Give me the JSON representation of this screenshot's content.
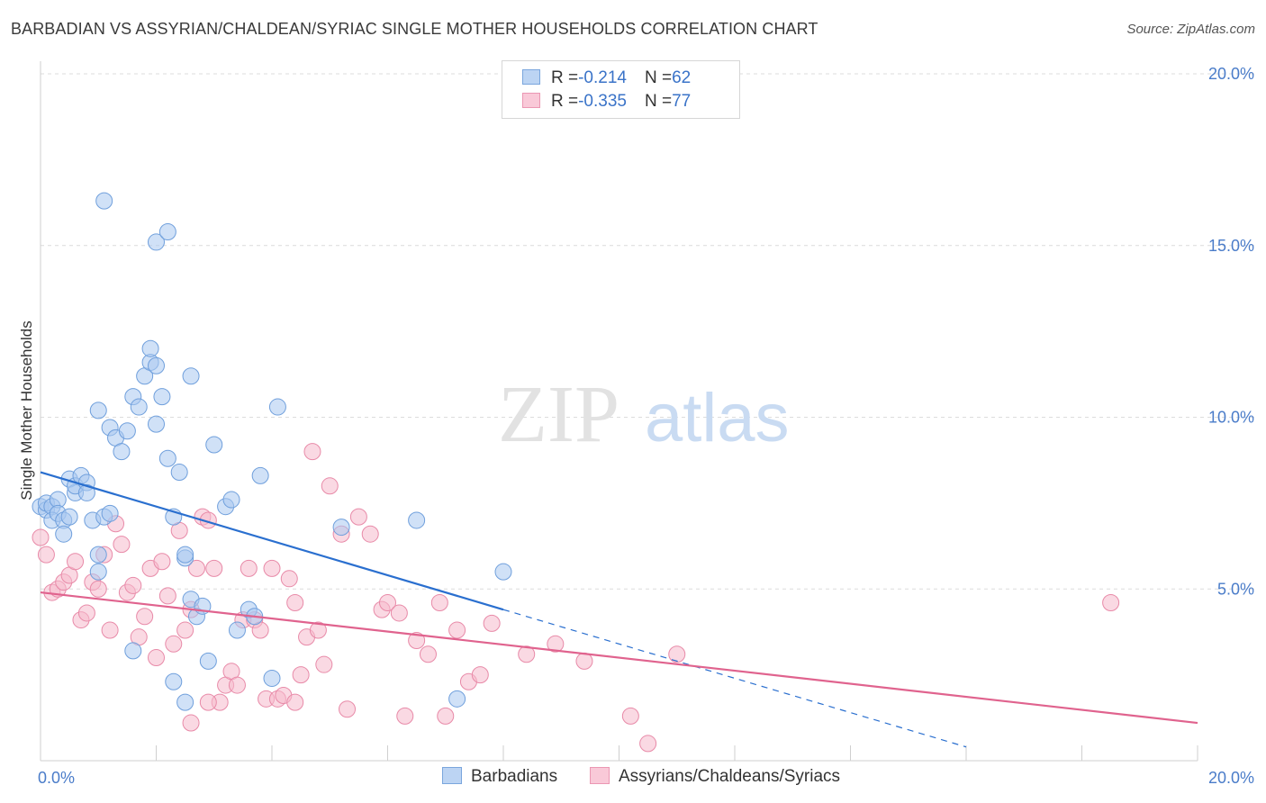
{
  "header": {
    "title": "BARBADIAN VS ASSYRIAN/CHALDEAN/SYRIAC SINGLE MOTHER HOUSEHOLDS CORRELATION CHART",
    "source": "Source: ZipAtlas.com"
  },
  "watermark": {
    "zip": "ZIP",
    "atlas": "atlas"
  },
  "legend": {
    "r_label": "R = ",
    "n_label": "N = ",
    "rows": [
      {
        "r": "-0.214",
        "n": "62"
      },
      {
        "r": "-0.335",
        "n": "77"
      }
    ]
  },
  "bottom_legend": {
    "items": [
      "Barbadians",
      "Assyrians/Chaldeans/Syriacs"
    ]
  },
  "colors": {
    "blue_fill": "#a9c8f0",
    "blue_stroke": "#6f9fdc",
    "blue_line": "#2a6fcf",
    "pink_fill": "#f6b9cc",
    "pink_stroke": "#e88aa8",
    "pink_line": "#e0638e",
    "tick_text": "#4a7cc9",
    "grid": "#dcdcdc"
  },
  "chart_data": {
    "type": "scatter",
    "title": "BARBADIAN VS ASSYRIAN/CHALDEAN/SYRIAC SINGLE MOTHER HOUSEHOLDS CORRELATION CHART",
    "xlabel": "",
    "ylabel": "Single Mother Households",
    "xlim": [
      0,
      20
    ],
    "ylim": [
      0,
      20
    ],
    "x_tick_labels": [
      "0.0%",
      "20.0%"
    ],
    "y_tick_labels": [
      "5.0%",
      "10.0%",
      "15.0%",
      "20.0%"
    ],
    "y_ticks": [
      5,
      10,
      15,
      20
    ],
    "grid": true,
    "legend_position": "top-center",
    "series": [
      {
        "name": "Barbadians",
        "r": -0.214,
        "n": 62,
        "trend": {
          "x0": 0.0,
          "y0": 8.4,
          "x1": 8.0,
          "y1": 4.4,
          "dashed_to_x": 16.0
        },
        "points": [
          [
            0.0,
            7.4
          ],
          [
            0.1,
            7.3
          ],
          [
            0.1,
            7.5
          ],
          [
            0.2,
            7.4
          ],
          [
            0.2,
            7.0
          ],
          [
            0.3,
            7.6
          ],
          [
            0.3,
            7.2
          ],
          [
            0.4,
            7.0
          ],
          [
            0.4,
            6.6
          ],
          [
            0.5,
            8.2
          ],
          [
            0.5,
            7.1
          ],
          [
            0.6,
            7.8
          ],
          [
            0.6,
            8.0
          ],
          [
            0.7,
            8.3
          ],
          [
            0.8,
            8.1
          ],
          [
            0.8,
            7.8
          ],
          [
            0.9,
            7.0
          ],
          [
            1.0,
            6.0
          ],
          [
            1.0,
            5.5
          ],
          [
            1.1,
            7.1
          ],
          [
            1.2,
            7.2
          ],
          [
            1.2,
            9.7
          ],
          [
            1.3,
            9.4
          ],
          [
            1.4,
            9.0
          ],
          [
            1.5,
            9.6
          ],
          [
            1.6,
            10.6
          ],
          [
            1.7,
            10.3
          ],
          [
            1.8,
            11.2
          ],
          [
            1.9,
            11.6
          ],
          [
            2.0,
            9.8
          ],
          [
            2.0,
            11.5
          ],
          [
            2.1,
            10.6
          ],
          [
            2.2,
            8.8
          ],
          [
            2.3,
            7.1
          ],
          [
            2.4,
            8.4
          ],
          [
            2.5,
            5.9
          ],
          [
            2.5,
            6.0
          ],
          [
            2.6,
            4.7
          ],
          [
            2.7,
            4.2
          ],
          [
            2.8,
            4.5
          ],
          [
            1.1,
            16.3
          ],
          [
            1.9,
            12.0
          ],
          [
            1.0,
            10.2
          ],
          [
            2.0,
            15.1
          ],
          [
            2.2,
            15.4
          ],
          [
            2.6,
            11.2
          ],
          [
            3.0,
            9.2
          ],
          [
            3.2,
            7.4
          ],
          [
            3.3,
            7.6
          ],
          [
            3.4,
            3.8
          ],
          [
            3.6,
            4.4
          ],
          [
            3.7,
            4.2
          ],
          [
            3.8,
            8.3
          ],
          [
            4.0,
            2.4
          ],
          [
            4.1,
            10.3
          ],
          [
            1.6,
            3.2
          ],
          [
            2.3,
            2.3
          ],
          [
            2.5,
            1.7
          ],
          [
            2.9,
            2.9
          ],
          [
            5.2,
            6.8
          ],
          [
            6.5,
            7.0
          ],
          [
            7.2,
            1.8
          ],
          [
            8.0,
            5.5
          ]
        ]
      },
      {
        "name": "Assyrians/Chaldeans/Syriacs",
        "r": -0.335,
        "n": 77,
        "trend": {
          "x0": 0.0,
          "y0": 4.9,
          "x1": 20.0,
          "y1": 1.1
        },
        "points": [
          [
            0.0,
            6.5
          ],
          [
            0.1,
            6.0
          ],
          [
            0.2,
            4.9
          ],
          [
            0.3,
            5.0
          ],
          [
            0.4,
            5.2
          ],
          [
            0.5,
            5.4
          ],
          [
            0.6,
            5.8
          ],
          [
            0.7,
            4.1
          ],
          [
            0.8,
            4.3
          ],
          [
            0.9,
            5.2
          ],
          [
            1.0,
            5.0
          ],
          [
            1.1,
            6.0
          ],
          [
            1.2,
            3.8
          ],
          [
            1.3,
            6.9
          ],
          [
            1.4,
            6.3
          ],
          [
            1.5,
            4.9
          ],
          [
            1.6,
            5.1
          ],
          [
            1.7,
            3.6
          ],
          [
            1.8,
            4.2
          ],
          [
            1.9,
            5.6
          ],
          [
            2.0,
            3.0
          ],
          [
            2.1,
            5.8
          ],
          [
            2.2,
            4.8
          ],
          [
            2.3,
            3.4
          ],
          [
            2.4,
            6.7
          ],
          [
            2.5,
            3.8
          ],
          [
            2.6,
            4.4
          ],
          [
            2.7,
            5.6
          ],
          [
            2.8,
            7.1
          ],
          [
            2.9,
            7.0
          ],
          [
            3.0,
            5.6
          ],
          [
            3.1,
            1.7
          ],
          [
            3.2,
            2.2
          ],
          [
            3.3,
            2.6
          ],
          [
            3.4,
            2.2
          ],
          [
            3.5,
            4.1
          ],
          [
            3.6,
            5.6
          ],
          [
            3.7,
            4.1
          ],
          [
            3.8,
            3.8
          ],
          [
            3.9,
            1.8
          ],
          [
            4.0,
            5.6
          ],
          [
            4.1,
            1.8
          ],
          [
            4.2,
            1.9
          ],
          [
            4.3,
            5.3
          ],
          [
            4.4,
            4.6
          ],
          [
            4.5,
            2.5
          ],
          [
            4.6,
            3.6
          ],
          [
            4.7,
            9.0
          ],
          [
            4.8,
            3.8
          ],
          [
            4.9,
            2.8
          ],
          [
            5.0,
            8.0
          ],
          [
            5.2,
            6.6
          ],
          [
            5.3,
            1.5
          ],
          [
            5.5,
            7.1
          ],
          [
            5.7,
            6.6
          ],
          [
            5.9,
            4.4
          ],
          [
            6.0,
            4.6
          ],
          [
            6.2,
            4.3
          ],
          [
            6.3,
            1.3
          ],
          [
            6.5,
            3.5
          ],
          [
            6.7,
            3.1
          ],
          [
            6.9,
            4.6
          ],
          [
            7.0,
            1.3
          ],
          [
            7.2,
            3.8
          ],
          [
            7.4,
            2.3
          ],
          [
            7.6,
            2.5
          ],
          [
            7.8,
            4.0
          ],
          [
            2.6,
            1.1
          ],
          [
            2.9,
            1.7
          ],
          [
            4.4,
            1.7
          ],
          [
            8.4,
            3.1
          ],
          [
            8.9,
            3.4
          ],
          [
            9.4,
            2.9
          ],
          [
            10.2,
            1.3
          ],
          [
            10.5,
            0.5
          ],
          [
            11.0,
            3.1
          ],
          [
            18.5,
            4.6
          ]
        ]
      }
    ]
  }
}
